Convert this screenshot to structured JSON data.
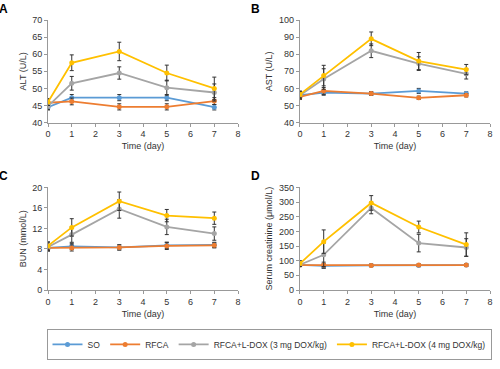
{
  "chart_data": [
    {
      "type": "line",
      "title": "A",
      "x_label": "Time (day)",
      "y_label": "ALT (U/L)",
      "x": [
        0,
        1,
        3,
        5,
        7
      ],
      "xlim": [
        0,
        8
      ],
      "xticks": [
        0,
        1,
        2,
        3,
        4,
        5,
        6,
        7,
        8
      ],
      "ylim": [
        40,
        70
      ],
      "yticks": [
        40,
        45,
        50,
        55,
        60,
        65,
        70
      ],
      "grid": false,
      "legend": "bottom",
      "marker": "circle",
      "line_style": "solid",
      "series": [
        {
          "name": "SO",
          "color": "#5b9bd5",
          "values": [
            44.5,
            47.3,
            47.3,
            47.3,
            44.5
          ],
          "error": [
            0.8,
            0.9,
            0.9,
            0.9,
            0.8
          ]
        },
        {
          "name": "RFCA",
          "color": "#ed7d31",
          "values": [
            45.8,
            46.2,
            44.6,
            44.6,
            46.3
          ],
          "error": [
            1.0,
            1.0,
            0.9,
            0.9,
            1.0
          ]
        },
        {
          "name": "RFCA+L-DOX (3 mg DOX/kg)",
          "color": "#a5a5a5",
          "values": [
            44.8,
            51.5,
            54.5,
            50.2,
            48.8
          ],
          "error": [
            1.0,
            2.0,
            1.8,
            2.2,
            2.5
          ]
        },
        {
          "name": "RFCA+L-DOX (4 mg DOX/kg)",
          "color": "#ffc000",
          "values": [
            46.0,
            57.5,
            60.8,
            54.5,
            50.0
          ],
          "error": [
            1.0,
            2.3,
            2.7,
            2.3,
            3.3
          ]
        }
      ]
    },
    {
      "type": "line",
      "title": "B",
      "x_label": "Time (day)",
      "y_label": "AST (U/L)",
      "x": [
        0,
        1,
        3,
        5,
        7
      ],
      "xlim": [
        0,
        8
      ],
      "xticks": [
        0,
        1,
        2,
        3,
        4,
        5,
        6,
        7,
        8
      ],
      "ylim": [
        40,
        100
      ],
      "yticks": [
        40,
        50,
        60,
        70,
        80,
        90,
        100
      ],
      "grid": false,
      "marker": "circle",
      "line_style": "solid",
      "series": [
        {
          "name": "SO",
          "color": "#5b9bd5",
          "values": [
            56.0,
            57.5,
            57.0,
            58.5,
            57.0
          ],
          "error": [
            2.0,
            1.5,
            1.0,
            1.5,
            1.0
          ]
        },
        {
          "name": "RFCA",
          "color": "#ed7d31",
          "values": [
            55.0,
            58.5,
            57.0,
            54.5,
            56.0
          ],
          "error": [
            1.5,
            2.0,
            1.0,
            1.0,
            1.0
          ]
        },
        {
          "name": "RFCA+L-DOX (3 mg DOX/kg)",
          "color": "#a5a5a5",
          "values": [
            56.0,
            65.5,
            82.0,
            74.5,
            68.5
          ],
          "error": [
            2.0,
            6.0,
            4.0,
            4.0,
            3.0
          ]
        },
        {
          "name": "RFCA+L-DOX (4 mg DOX/kg)",
          "color": "#ffc000",
          "values": [
            56.5,
            67.5,
            89.0,
            76.0,
            71.0
          ],
          "error": [
            2.0,
            6.0,
            4.0,
            5.0,
            3.0
          ]
        }
      ]
    },
    {
      "type": "line",
      "title": "C",
      "x_label": "Time (day)",
      "y_label": "BUN (mmol/L)",
      "x": [
        0,
        1,
        3,
        5,
        7
      ],
      "xlim": [
        0,
        8
      ],
      "xticks": [
        0,
        1,
        2,
        3,
        4,
        5,
        6,
        7,
        8
      ],
      "ylim": [
        0,
        20
      ],
      "yticks": [
        0,
        4,
        8,
        12,
        16,
        20
      ],
      "grid": false,
      "marker": "circle",
      "line_style": "solid",
      "series": [
        {
          "name": "SO",
          "color": "#5b9bd5",
          "values": [
            8.2,
            8.5,
            8.3,
            8.7,
            8.8
          ],
          "error": [
            0.6,
            0.6,
            0.5,
            0.6,
            0.5
          ]
        },
        {
          "name": "RFCA",
          "color": "#ed7d31",
          "values": [
            8.2,
            8.2,
            8.3,
            8.6,
            8.7
          ],
          "error": [
            0.5,
            0.6,
            0.5,
            0.7,
            0.5
          ]
        },
        {
          "name": "RFCA+L-DOX (3 mg DOX/kg)",
          "color": "#a5a5a5",
          "values": [
            8.4,
            10.8,
            15.8,
            12.3,
            11.0
          ],
          "error": [
            0.8,
            1.5,
            1.8,
            1.5,
            1.3
          ]
        },
        {
          "name": "RFCA+L-DOX (4 mg DOX/kg)",
          "color": "#ffc000",
          "values": [
            8.6,
            12.2,
            17.3,
            14.5,
            14.0
          ],
          "error": [
            0.8,
            1.7,
            1.8,
            1.2,
            1.2
          ]
        }
      ]
    },
    {
      "type": "line",
      "title": "D",
      "x_label": "Time (day)",
      "y_label": "Serum creatinine (μmol/L)",
      "x": [
        0,
        1,
        3,
        5,
        7
      ],
      "xlim": [
        0,
        8
      ],
      "xticks": [
        0,
        1,
        2,
        3,
        4,
        5,
        6,
        7,
        8
      ],
      "ylim": [
        0,
        350
      ],
      "yticks": [
        0,
        50,
        100,
        150,
        200,
        250,
        300,
        350
      ],
      "grid": false,
      "marker": "circle",
      "line_style": "solid",
      "series": [
        {
          "name": "SO",
          "color": "#5b9bd5",
          "values": [
            86,
            82,
            84,
            84,
            85
          ],
          "error": [
            5,
            8,
            4,
            4,
            4
          ]
        },
        {
          "name": "RFCA",
          "color": "#ed7d31",
          "values": [
            85,
            85,
            84,
            85,
            85
          ],
          "error": [
            5,
            10,
            4,
            4,
            4
          ]
        },
        {
          "name": "RFCA+L-DOX (3 mg DOX/kg)",
          "color": "#a5a5a5",
          "values": [
            86,
            120,
            280,
            160,
            145
          ],
          "error": [
            5,
            40,
            20,
            30,
            30
          ]
        },
        {
          "name": "RFCA+L-DOX (4 mg DOX/kg)",
          "color": "#ffc000",
          "values": [
            90,
            165,
            297,
            215,
            155
          ],
          "error": [
            10,
            40,
            25,
            20,
            40
          ]
        }
      ]
    }
  ]
}
